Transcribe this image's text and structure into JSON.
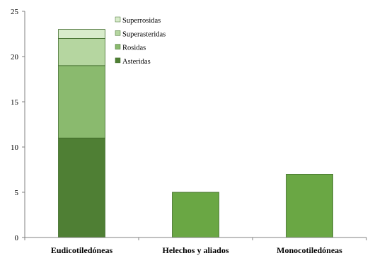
{
  "chart_data": {
    "type": "bar",
    "stacked": true,
    "title": "",
    "xlabel": "",
    "ylabel": "",
    "categories": [
      "Eudicotiledóneas",
      "Helechos y aliados",
      "Monocotiledóneas"
    ],
    "ylim": [
      0,
      25
    ],
    "yticks": [
      0,
      5,
      10,
      15,
      20,
      25
    ],
    "grid": false,
    "legend_position": "top-center",
    "series": [
      {
        "name": "Asteridas",
        "values": [
          11,
          0,
          0
        ],
        "color": "#4f7f34"
      },
      {
        "name": "Rosidas",
        "values": [
          8,
          0,
          0
        ],
        "color": "#8aba6e"
      },
      {
        "name": "Superasteridas",
        "values": [
          3,
          0,
          0
        ],
        "color": "#b5d6a0"
      },
      {
        "name": "Superrosidas",
        "values": [
          1,
          0,
          0
        ],
        "color": "#d8eccb"
      },
      {
        "name": "",
        "values": [
          0,
          5,
          7
        ],
        "color": "#6aa744"
      }
    ],
    "legend": [
      "Superrosidas",
      "Superasteridas",
      "Rosidas",
      "Asteridas"
    ]
  }
}
